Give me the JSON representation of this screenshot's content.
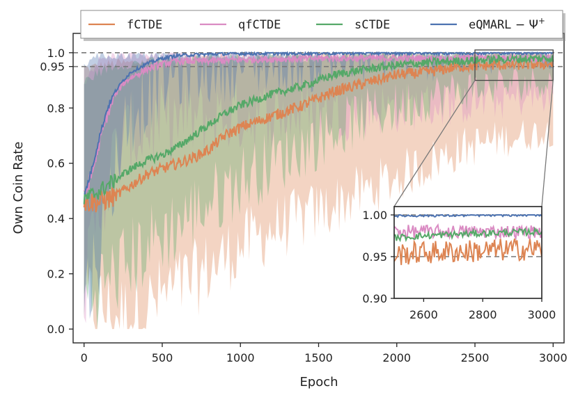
{
  "chart_data": {
    "type": "line",
    "title": "",
    "xlabel": "Epoch",
    "ylabel": "Own Coin Rate",
    "xlim": [
      -70,
      3070
    ],
    "ylim": [
      -0.05,
      1.07
    ],
    "xticks": [
      0,
      500,
      1000,
      1500,
      2000,
      2500,
      3000
    ],
    "yticks": [
      0.0,
      0.2,
      0.4,
      0.6,
      0.8,
      0.95,
      1.0
    ],
    "ytick_labels": [
      "0.0",
      "0.2",
      "0.4",
      "0.6",
      "0.8",
      "0.95",
      "1.0"
    ],
    "reference_lines": [
      1.0,
      0.95
    ],
    "legend": {
      "placement": "top",
      "entries": [
        "fCTDE",
        "qfCTDE",
        "sCTDE",
        "eQMARL"
      ]
    },
    "series": [
      {
        "name": "fCTDE",
        "legend_label": "fCTDE",
        "color": "#dd8452",
        "x": [
          0,
          100,
          200,
          300,
          400,
          500,
          600,
          700,
          800,
          900,
          1000,
          1200,
          1400,
          1600,
          1800,
          2000,
          2200,
          2400,
          2600,
          2800,
          3000
        ],
        "y": [
          0.46,
          0.46,
          0.48,
          0.52,
          0.56,
          0.58,
          0.6,
          0.62,
          0.65,
          0.7,
          0.73,
          0.77,
          0.81,
          0.86,
          0.89,
          0.92,
          0.93,
          0.95,
          0.955,
          0.957,
          0.96
        ],
        "band_low": [
          0.1,
          0.08,
          0.05,
          0.05,
          0.08,
          0.12,
          0.15,
          0.18,
          0.22,
          0.26,
          0.3,
          0.36,
          0.4,
          0.45,
          0.5,
          0.55,
          0.6,
          0.65,
          0.68,
          0.7,
          0.72
        ],
        "band_high": [
          0.95,
          0.96,
          0.97,
          0.97,
          0.98,
          0.98,
          0.98,
          0.99,
          0.99,
          0.99,
          0.99,
          0.99,
          1.0,
          1.0,
          1.0,
          1.0,
          1.0,
          1.0,
          1.0,
          1.0,
          1.0
        ]
      },
      {
        "name": "qfCTDE",
        "legend_label": "qfCTDE",
        "color": "#da8bc3",
        "x": [
          0,
          50,
          100,
          150,
          200,
          250,
          300,
          400,
          500,
          600,
          800,
          1000,
          1500,
          2000,
          2500,
          3000
        ],
        "y": [
          0.48,
          0.56,
          0.68,
          0.78,
          0.85,
          0.89,
          0.91,
          0.94,
          0.96,
          0.97,
          0.97,
          0.975,
          0.98,
          0.98,
          0.98,
          0.98
        ],
        "band_low": [
          0.1,
          0.3,
          0.45,
          0.55,
          0.62,
          0.66,
          0.7,
          0.72,
          0.74,
          0.75,
          0.76,
          0.77,
          0.78,
          0.8,
          0.82,
          0.84
        ],
        "band_high": [
          0.9,
          0.95,
          0.98,
          0.99,
          1.0,
          1.0,
          1.0,
          1.0,
          1.0,
          1.0,
          1.0,
          1.0,
          1.0,
          1.0,
          1.0,
          1.0
        ]
      },
      {
        "name": "sCTDE",
        "legend_label": "sCTDE",
        "color": "#55a868",
        "x": [
          0,
          100,
          200,
          300,
          400,
          500,
          600,
          700,
          800,
          900,
          1000,
          1200,
          1400,
          1600,
          1800,
          2000,
          2200,
          2400,
          2600,
          2800,
          3000
        ],
        "y": [
          0.47,
          0.5,
          0.54,
          0.58,
          0.61,
          0.63,
          0.66,
          0.7,
          0.74,
          0.78,
          0.81,
          0.85,
          0.88,
          0.92,
          0.94,
          0.955,
          0.965,
          0.97,
          0.975,
          0.978,
          0.98
        ],
        "band_low": [
          0.12,
          0.15,
          0.2,
          0.25,
          0.3,
          0.34,
          0.38,
          0.42,
          0.46,
          0.5,
          0.54,
          0.6,
          0.66,
          0.72,
          0.77,
          0.8,
          0.84,
          0.86,
          0.88,
          0.89,
          0.9
        ],
        "band_high": [
          0.9,
          0.94,
          0.96,
          0.97,
          0.97,
          0.98,
          0.98,
          0.98,
          0.99,
          0.99,
          0.99,
          0.99,
          0.99,
          1.0,
          1.0,
          1.0,
          1.0,
          1.0,
          1.0,
          1.0,
          1.0
        ]
      },
      {
        "name": "eQMARL",
        "legend_label": "eQMARL",
        "color": "#4c72b0",
        "x": [
          0,
          50,
          100,
          150,
          200,
          250,
          300,
          400,
          500,
          600,
          800,
          1000,
          1500,
          2000,
          2500,
          3000
        ],
        "y": [
          0.48,
          0.58,
          0.7,
          0.8,
          0.86,
          0.9,
          0.93,
          0.96,
          0.98,
          0.99,
          0.995,
          0.997,
          0.998,
          0.999,
          0.999,
          1.0
        ],
        "band_low": [
          0.1,
          0.2,
          0.3,
          0.45,
          0.6,
          0.7,
          0.78,
          0.85,
          0.9,
          0.93,
          0.95,
          0.96,
          0.97,
          0.98,
          0.98,
          0.99
        ],
        "band_high": [
          0.95,
          1.0,
          1.0,
          1.0,
          1.0,
          1.0,
          1.0,
          1.0,
          1.0,
          1.0,
          1.0,
          1.0,
          1.0,
          1.0,
          1.0,
          1.0
        ]
      }
    ],
    "inset": {
      "xlim": [
        2500,
        3000
      ],
      "ylim": [
        0.9,
        1.01
      ],
      "xticks": [
        2600,
        2800,
        3000
      ],
      "yticks": [
        0.9,
        0.95,
        1.0
      ],
      "ytick_labels": [
        "0.90",
        "0.95",
        "1.00"
      ],
      "reference_lines": [
        1.0,
        0.95
      ],
      "zoom_region": {
        "x": [
          2500,
          3000
        ],
        "y": [
          0.9,
          1.01
        ]
      }
    }
  }
}
